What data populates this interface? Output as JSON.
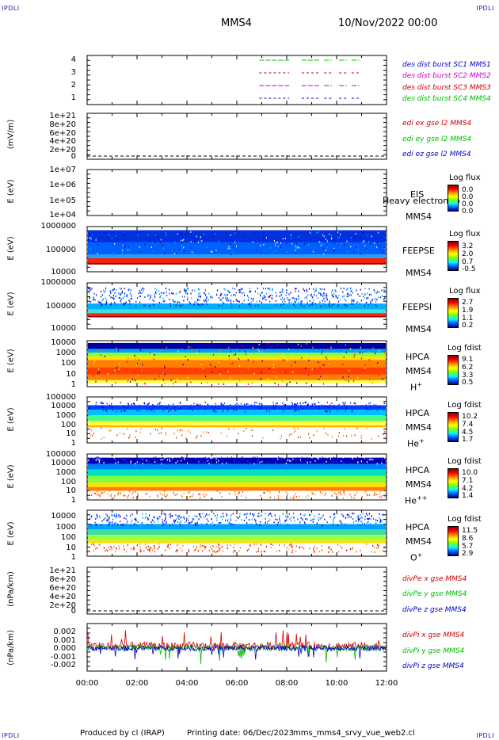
{
  "corners": {
    "top_left": "IPDLI",
    "top_right": "IPDLI",
    "bottom_left": "IPDLI",
    "bottom_right": "IPDLI"
  },
  "header": {
    "spacecraft": "MMS4",
    "datetime": "10/Nov/2022 00:00"
  },
  "footer": {
    "produced_by": "Produced by cl (IRAP)",
    "printing_date": "Printing date: 06/Dec/2023",
    "script": "mms_mms4_srvy_vue_web2.cl"
  },
  "colors": {
    "mms1": "#0000cc",
    "mms2": "#cc00cc",
    "mms3": "#cc0000",
    "mms4": "#00bb00",
    "blue": "#0000cc",
    "red": "#cc0000",
    "green": "#00bb00",
    "magenta": "#cc00cc"
  },
  "chart_data": {
    "type": "multi-panel time series",
    "x_axis": {
      "ticks": [
        "00:00",
        "02:00",
        "04:00",
        "06:00",
        "08:00",
        "10:00",
        "12:00"
      ],
      "range": [
        "00:00",
        "12:00"
      ]
    },
    "panels": [
      {
        "id": "burst",
        "yticks": [
          "4",
          "3",
          "2",
          "1"
        ],
        "labels": [
          {
            "text": "des dist burst SC1 MMS1",
            "color": "#0000cc"
          },
          {
            "text": "des dist burst SC2 MMS2",
            "color": "#cc00cc"
          },
          {
            "text": "des dist burst SC3 MMS3",
            "color": "#cc0000"
          },
          {
            "text": "des dist burst SC4 MMS4",
            "color": "#00bb00"
          }
        ],
        "intervals_hours": [
          [
            6.9,
            8.1
          ],
          [
            8.6,
            9.3
          ],
          [
            9.5,
            9.8
          ],
          [
            10.1,
            10.4
          ],
          [
            10.6,
            10.9
          ]
        ]
      },
      {
        "id": "edi",
        "ylabel": "(mV/m)",
        "yticks": [
          "1e+21",
          "8e+20",
          "6e+20",
          "4e+20",
          "2e+20",
          "0"
        ],
        "labels": [
          {
            "text": "edi ex gse l2 MMS4",
            "color": "#cc0000"
          },
          {
            "text": "edi ey gse l2 MMS4",
            "color": "#00bb00"
          },
          {
            "text": "edi ez gse l2 MMS4",
            "color": "#0000cc"
          }
        ]
      },
      {
        "id": "eis",
        "ylabel": "E (eV)",
        "yticks": [
          "1e+07",
          "1e+06",
          "1e+05",
          "1e+04"
        ],
        "instrument": [
          "EIS",
          "MMS4"
        ],
        "overlay": "Heavy electron to",
        "colorbar": {
          "title": "Log flux",
          "values": [
            "0.0",
            "0.0",
            "0.0",
            "0.0"
          ]
        }
      },
      {
        "id": "feepse",
        "ylabel": "E (eV)",
        "yticks": [
          "1000000",
          "100000",
          "10000"
        ],
        "instrument": [
          "FEEPSE",
          "MMS4"
        ],
        "colorbar": {
          "title": "Log flux",
          "values": [
            "3.2",
            "2.0",
            "0.7",
            "-0.5"
          ]
        }
      },
      {
        "id": "feepsi",
        "ylabel": "E (eV)",
        "yticks": [
          "1000000",
          "100000",
          "10000"
        ],
        "instrument": [
          "FEEPSI",
          "MMS4"
        ],
        "colorbar": {
          "title": "Log flux",
          "values": [
            "2.7",
            "1.9",
            "1.1",
            "0.2"
          ]
        }
      },
      {
        "id": "hpca_h",
        "ylabel": "E (eV)",
        "yticks": [
          "10000",
          "1000",
          "100",
          "10",
          "1"
        ],
        "instrument": [
          "HPCA",
          "MMS4"
        ],
        "species": "H",
        "species_sup": "+",
        "colorbar": {
          "title": "Log fdist",
          "values": [
            "9.1",
            "6.2",
            "3.3",
            "0.5"
          ]
        }
      },
      {
        "id": "hpca_he",
        "ylabel": "E (eV)",
        "yticks": [
          "100000",
          "10000",
          "1000",
          "100",
          "10",
          "1"
        ],
        "instrument": [
          "HPCA",
          "MMS4"
        ],
        "species": "He",
        "species_sup": "+",
        "colorbar": {
          "title": "Log fdist",
          "values": [
            "10.2",
            "7.4",
            "4.5",
            "1.7"
          ]
        }
      },
      {
        "id": "hpca_hepp",
        "ylabel": "E (eV)",
        "yticks": [
          "100000",
          "10000",
          "1000",
          "100",
          "10",
          "1"
        ],
        "instrument": [
          "HPCA",
          "MMS4"
        ],
        "species": "He",
        "species_sup": "++",
        "colorbar": {
          "title": "Log fdist",
          "values": [
            "10.0",
            "7.1",
            "4.2",
            "1.4"
          ]
        }
      },
      {
        "id": "hpca_o",
        "ylabel": "E (eV)",
        "yticks": [
          "10000",
          "1000",
          "100",
          "10",
          "1"
        ],
        "instrument": [
          "HPCA",
          "MMS4"
        ],
        "species": "O",
        "species_sup": "+",
        "colorbar": {
          "title": "Log fdist",
          "values": [
            "11.5",
            "8.6",
            "5.7",
            "2.9"
          ]
        }
      },
      {
        "id": "divpe",
        "ylabel": "(nPa/km)",
        "yticks": [
          "1e+21",
          "8e+20",
          "6e+20",
          "4e+20",
          "2e+20",
          "0"
        ],
        "labels": [
          {
            "text": "divPe x gse MMS4",
            "color": "#cc0000"
          },
          {
            "text": "divPe y gse MMS4",
            "color": "#00bb00"
          },
          {
            "text": "divPe z gse MMS4",
            "color": "#0000cc"
          }
        ]
      },
      {
        "id": "divpi",
        "ylabel": "(nPa/km)",
        "yticks": [
          "0.002",
          "0.001",
          "0.000",
          "-0.001",
          "-0.002"
        ],
        "ylim": [
          -0.0027,
          0.0027
        ],
        "labels": [
          {
            "text": "divPi x gse MMS4",
            "color": "#cc0000"
          },
          {
            "text": "divPi y gse MMS4",
            "color": "#00bb00"
          },
          {
            "text": "divPi z gse MMS4",
            "color": "#0000cc"
          }
        ]
      }
    ]
  }
}
